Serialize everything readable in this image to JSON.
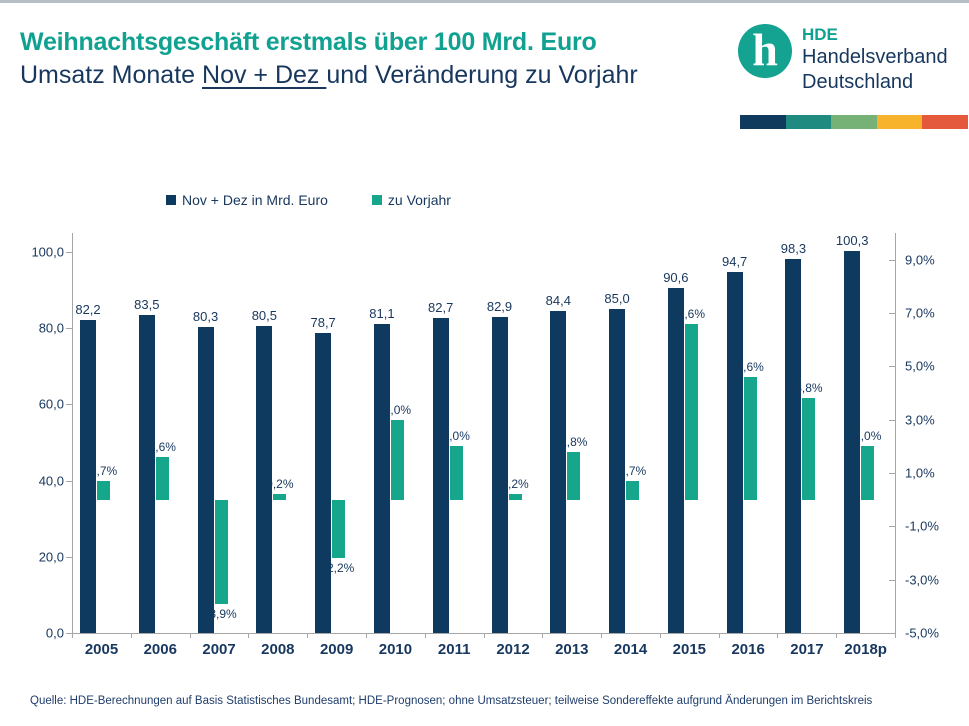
{
  "header": {
    "title_line1": "Weihnachtsgeschäft erstmals über 100 Mrd. Euro",
    "title_line2_prefix": "Umsatz Monate ",
    "title_line2_underlined": "Nov + Dez ",
    "title_line2_suffix": "und Veränderung zu Vorjahr"
  },
  "logo": {
    "abbr": "HDE",
    "name_line1": "Handelsverband",
    "name_line2": "Deutschland",
    "mark_letter": "h",
    "circle_color": "#14a390",
    "strip_colors": [
      "#0f3a5d",
      "#1f8a80",
      "#76b275",
      "#f7b32b",
      "#e4593c"
    ]
  },
  "legend": {
    "items": [
      {
        "label": "Nov + Dez in Mrd. Euro",
        "color": "#0e3a5f"
      },
      {
        "label": "zu Vorjahr",
        "color": "#16a68c"
      }
    ]
  },
  "chart_data": {
    "type": "bar",
    "categories": [
      "2005",
      "2006",
      "2007",
      "2008",
      "2009",
      "2010",
      "2011",
      "2012",
      "2013",
      "2014",
      "2015",
      "2016",
      "2017",
      "2018p"
    ],
    "series": [
      {
        "name": "Nov + Dez in Mrd. Euro",
        "axis": "left",
        "color": "#0e3a5f",
        "values": [
          82.2,
          83.5,
          80.3,
          80.5,
          78.7,
          81.1,
          82.7,
          82.9,
          84.4,
          85.0,
          90.6,
          94.7,
          98.3,
          100.3
        ],
        "labels": [
          "82,2",
          "83,5",
          "80,3",
          "80,5",
          "78,7",
          "81,1",
          "82,7",
          "82,9",
          "84,4",
          "85,0",
          "90,6",
          "94,7",
          "98,3",
          "100,3"
        ]
      },
      {
        "name": "zu Vorjahr",
        "axis": "right",
        "color": "#16a68c",
        "values": [
          0.7,
          1.6,
          -3.9,
          0.2,
          -2.2,
          3.0,
          2.0,
          0.2,
          1.8,
          0.7,
          6.6,
          4.6,
          3.8,
          2.0
        ],
        "labels": [
          "0,7%",
          "1,6%",
          "-3,9%",
          "0,2%",
          "-2,2%",
          "3,0%",
          "2,0%",
          "0,2%",
          "1,8%",
          "0,7%",
          "6,6%",
          "4,6%",
          "3,8%",
          "2,0%"
        ]
      }
    ],
    "left_axis": {
      "min": 0,
      "max": 105,
      "ticks": [
        0,
        20,
        40,
        60,
        80,
        100
      ],
      "tick_labels": [
        "0,0",
        "20,0",
        "40,0",
        "60,0",
        "80,0",
        "100,0"
      ]
    },
    "right_axis": {
      "min": -5,
      "max": 10,
      "zero_at_left_units": 35,
      "left_units_per_pct": 7,
      "ticks": [
        -5,
        -3,
        -1,
        1,
        3,
        5,
        7,
        9
      ],
      "tick_labels": [
        "-5,0%",
        "-3,0%",
        "-1,0%",
        "1,0%",
        "3,0%",
        "5,0%",
        "7,0%",
        "9,0%"
      ]
    },
    "grid": false,
    "legend_position": "top"
  },
  "source": "Quelle: HDE-Berechnungen auf Basis Statistisches Bundesamt; HDE-Prognosen; ohne Umsatzsteuer; teilweise Sondereffekte aufgrund Änderungen im Berichtskreis"
}
